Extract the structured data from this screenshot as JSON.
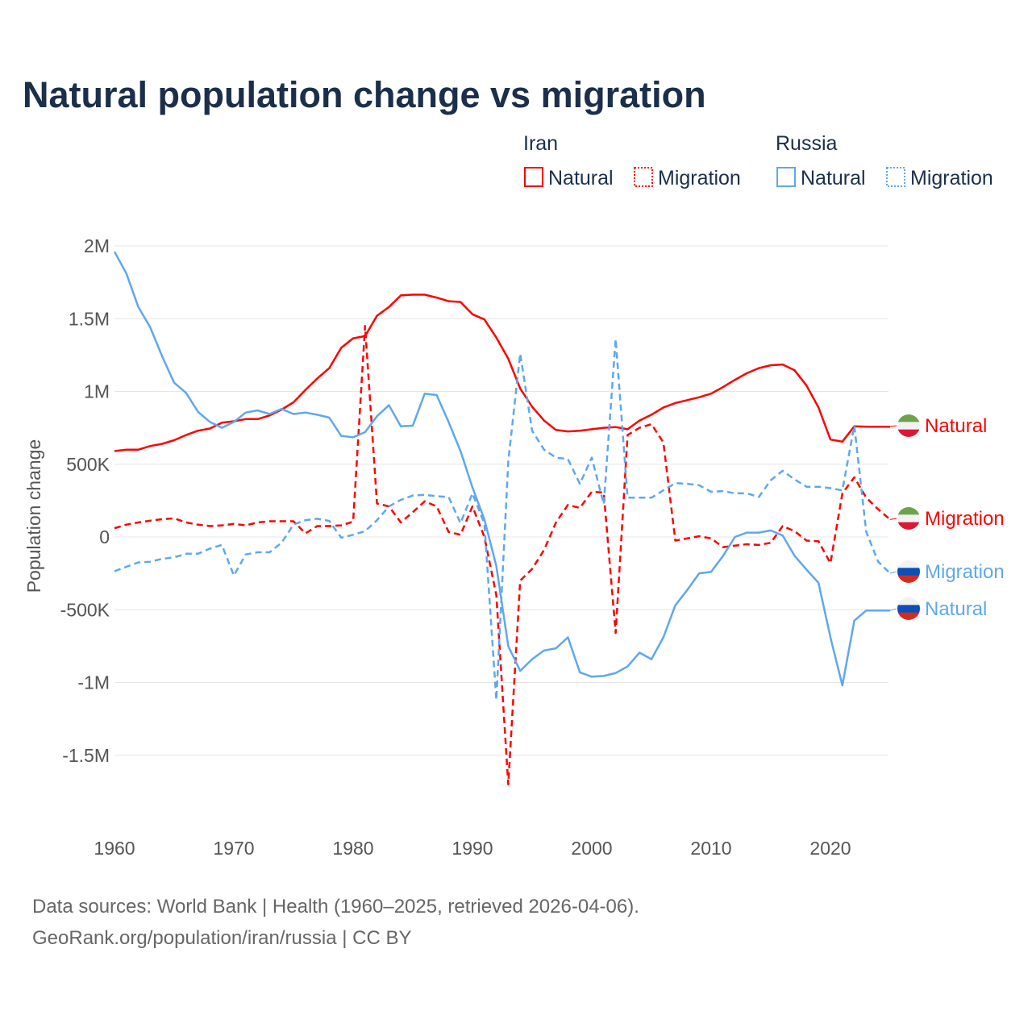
{
  "chart_data": {
    "type": "line",
    "title": "Natural population change vs migration",
    "xlabel": "",
    "ylabel": "Population change",
    "xlim": [
      1960,
      2025
    ],
    "ylim": [
      -1700000,
      2000000
    ],
    "x_ticks": [
      1960,
      1970,
      1980,
      1990,
      2000,
      2010,
      2020
    ],
    "x_tick_labels": [
      "1960",
      "1970",
      "1980",
      "1990",
      "2000",
      "2010",
      "2020"
    ],
    "y_ticks": [
      2000000,
      1500000,
      1000000,
      500000,
      0,
      -500000,
      -1000000,
      -1500000
    ],
    "y_tick_labels": [
      "2M",
      "1.5M",
      "1M",
      "500K",
      "0",
      "-500K",
      "-1M",
      "-1.5M"
    ],
    "grid": true,
    "legend_position": "top-right",
    "legend_groups": [
      {
        "country": "Iran",
        "entries": [
          "Natural",
          "Migration"
        ]
      },
      {
        "country": "Russia",
        "entries": [
          "Natural",
          "Migration"
        ]
      }
    ],
    "x_start": 1960,
    "series": [
      {
        "name": "Iran Natural",
        "country": "Iran",
        "kind": "Natural",
        "label": "Natural",
        "color": "#ff0000",
        "dash": false,
        "flag": "iran-flag",
        "values": [
          590000,
          600000,
          600000,
          625000,
          640000,
          665000,
          700000,
          730000,
          745000,
          785000,
          795000,
          810000,
          810000,
          835000,
          875000,
          925000,
          1010000,
          1090000,
          1160000,
          1300000,
          1365000,
          1380000,
          1520000,
          1580000,
          1660000,
          1665000,
          1665000,
          1645000,
          1620000,
          1615000,
          1530000,
          1495000,
          1370000,
          1225000,
          1020000,
          895000,
          800000,
          735000,
          725000,
          730000,
          740000,
          750000,
          755000,
          740000,
          800000,
          840000,
          890000,
          920000,
          940000,
          960000,
          985000,
          1030000,
          1080000,
          1125000,
          1160000,
          1180000,
          1185000,
          1145000,
          1040000,
          890000,
          670000,
          655000,
          760000,
          758000,
          758000,
          758000
        ]
      },
      {
        "name": "Iran Migration",
        "country": "Iran",
        "kind": "Migration",
        "label": "Migration",
        "color": "#ff0000",
        "dash": true,
        "flag": "iran-flag",
        "values": [
          60000,
          85000,
          100000,
          112000,
          122000,
          128000,
          100000,
          85000,
          75000,
          80000,
          90000,
          80000,
          100000,
          108000,
          108000,
          108000,
          25000,
          75000,
          75000,
          80000,
          105000,
          1450000,
          230000,
          210000,
          100000,
          170000,
          245000,
          210000,
          35000,
          15000,
          210000,
          0,
          -400000,
          -1700000,
          -300000,
          -220000,
          -90000,
          100000,
          220000,
          200000,
          310000,
          305000,
          -660000,
          700000,
          750000,
          775000,
          650000,
          -25000,
          -10000,
          5000,
          -10000,
          -70000,
          -60000,
          -50000,
          -55000,
          -40000,
          75000,
          40000,
          -25000,
          -30000,
          -180000,
          300000,
          410000,
          270000,
          190000,
          120000
        ]
      },
      {
        "name": "Russia Natural",
        "country": "Russia",
        "kind": "Natural",
        "label": "Natural",
        "color": "#5ea8ee",
        "dash": false,
        "flag": "russia-flag",
        "values": [
          1960000,
          1810000,
          1580000,
          1440000,
          1240000,
          1060000,
          990000,
          860000,
          790000,
          750000,
          790000,
          855000,
          870000,
          845000,
          880000,
          845000,
          855000,
          840000,
          820000,
          695000,
          685000,
          720000,
          830000,
          905000,
          760000,
          765000,
          985000,
          975000,
          790000,
          590000,
          340000,
          120000,
          -200000,
          -750000,
          -920000,
          -840000,
          -780000,
          -765000,
          -690000,
          -930000,
          -960000,
          -955000,
          -935000,
          -890000,
          -795000,
          -840000,
          -690000,
          -470000,
          -365000,
          -250000,
          -240000,
          -130000,
          0,
          30000,
          30000,
          45000,
          10000,
          -130000,
          -225000,
          -315000,
          -690000,
          -1020000,
          -575000,
          -505000,
          -505000,
          -505000
        ]
      },
      {
        "name": "Russia Migration",
        "country": "Russia",
        "kind": "Migration",
        "label": "Migration",
        "color": "#5ea8ee",
        "dash": true,
        "flag": "russia-flag",
        "values": [
          -235000,
          -205000,
          -175000,
          -170000,
          -150000,
          -140000,
          -115000,
          -115000,
          -80000,
          -55000,
          -265000,
          -120000,
          -105000,
          -105000,
          -40000,
          85000,
          115000,
          125000,
          110000,
          -5000,
          15000,
          40000,
          115000,
          210000,
          255000,
          285000,
          290000,
          280000,
          275000,
          95000,
          300000,
          90000,
          -1120000,
          520000,
          1260000,
          730000,
          600000,
          545000,
          535000,
          365000,
          545000,
          225000,
          1360000,
          270000,
          270000,
          270000,
          320000,
          370000,
          365000,
          355000,
          310000,
          315000,
          300000,
          300000,
          275000,
          390000,
          455000,
          395000,
          345000,
          345000,
          335000,
          320000,
          765000,
          35000,
          -170000,
          -250000
        ]
      }
    ]
  },
  "footer": {
    "line1": "Data sources: World Bank | Health (1960–2025, retrieved 2026-04-06).",
    "line2": "GeoRank.org/population/iran/russia | CC BY"
  }
}
